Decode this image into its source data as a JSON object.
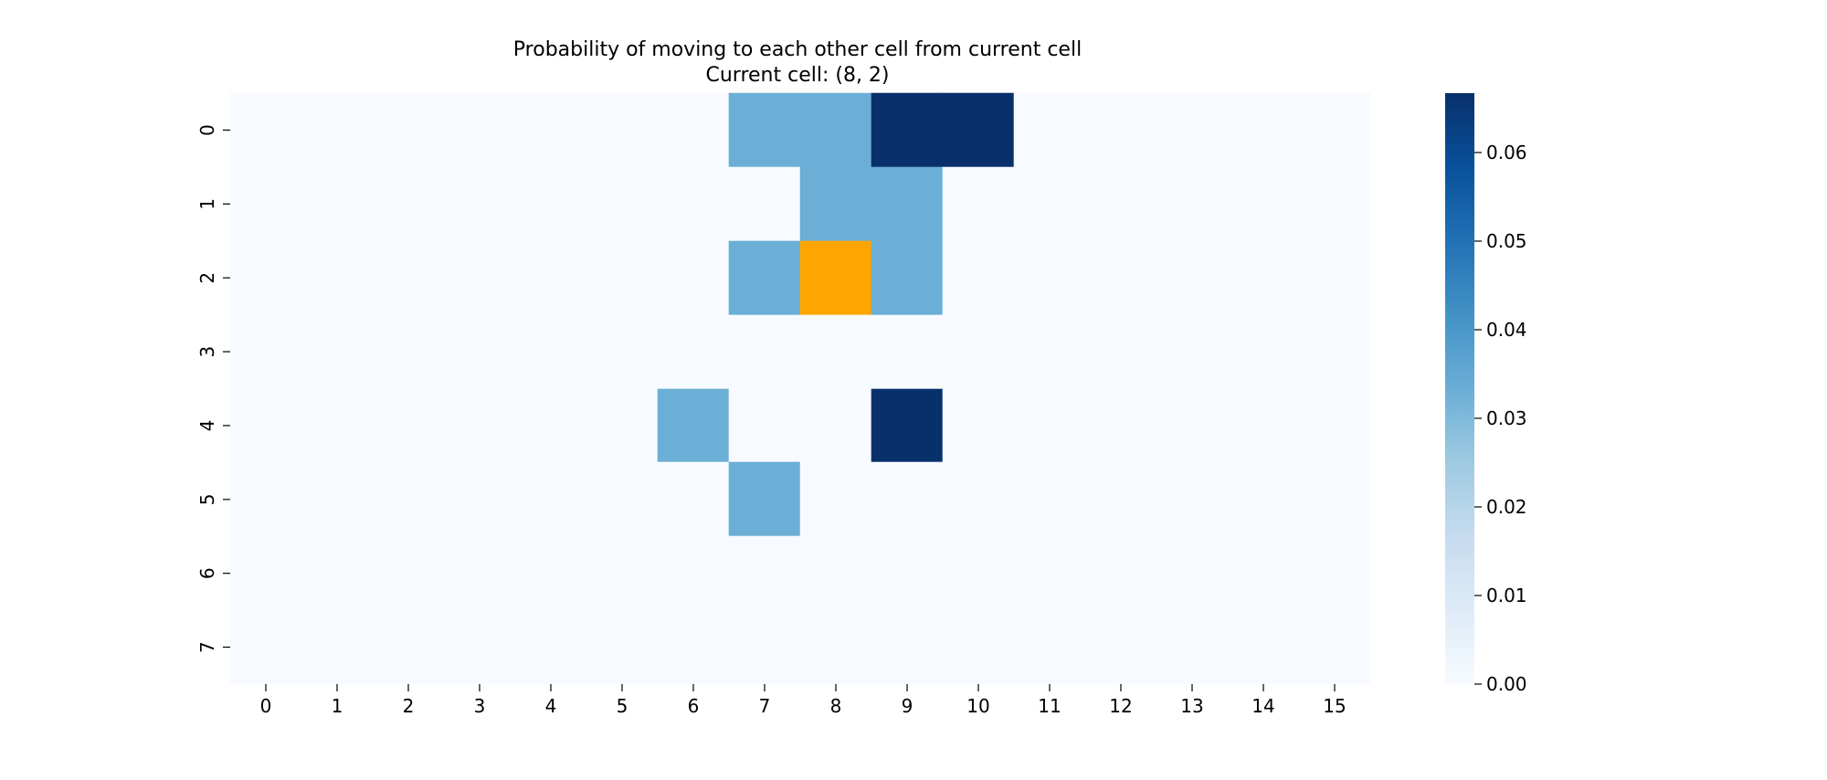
{
  "chart_data": {
    "type": "heatmap",
    "title": "Probability of moving to each other cell from current cell",
    "subtitle": "Current cell: (8, 2)",
    "xlabel": "",
    "ylabel": "",
    "x_ticks": [
      "0",
      "1",
      "2",
      "3",
      "4",
      "5",
      "6",
      "7",
      "8",
      "9",
      "10",
      "11",
      "12",
      "13",
      "14",
      "15"
    ],
    "y_ticks": [
      "0",
      "1",
      "2",
      "3",
      "4",
      "5",
      "6",
      "7"
    ],
    "rows": 8,
    "cols": 16,
    "cells": [
      {
        "x": 7,
        "y": 0,
        "value": 0.0333
      },
      {
        "x": 8,
        "y": 0,
        "value": 0.0333
      },
      {
        "x": 9,
        "y": 0,
        "value": 0.0667
      },
      {
        "x": 10,
        "y": 0,
        "value": 0.0667
      },
      {
        "x": 8,
        "y": 1,
        "value": 0.0333
      },
      {
        "x": 9,
        "y": 1,
        "value": 0.0333
      },
      {
        "x": 7,
        "y": 2,
        "value": 0.0333
      },
      {
        "x": 9,
        "y": 2,
        "value": 0.0333
      },
      {
        "x": 6,
        "y": 4,
        "value": 0.0333
      },
      {
        "x": 9,
        "y": 4,
        "value": 0.0667
      },
      {
        "x": 7,
        "y": 5,
        "value": 0.0333
      }
    ],
    "current_cell": {
      "x": 8,
      "y": 2
    },
    "current_cell_color": "#ffa500",
    "colormap": "Blues",
    "vmin": 0,
    "vmax": 0.0667,
    "colorbar_ticks": [
      "0.00",
      "0.01",
      "0.02",
      "0.03",
      "0.04",
      "0.05",
      "0.06"
    ],
    "colorbar_tick_values": [
      0,
      0.01,
      0.02,
      0.03,
      0.04,
      0.05,
      0.06
    ],
    "legend_placement": "right",
    "grid": false
  }
}
